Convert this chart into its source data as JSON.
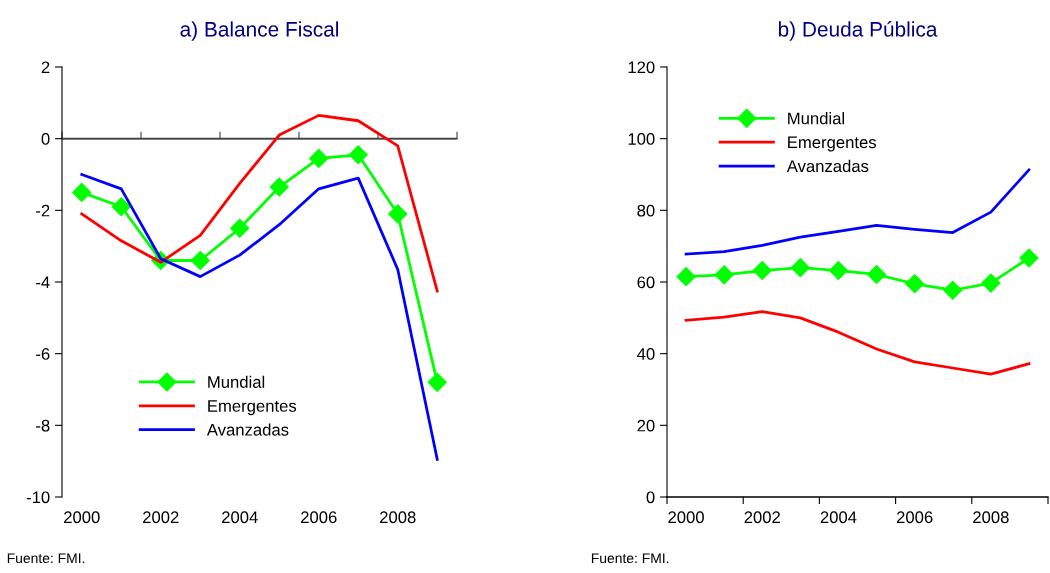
{
  "chart_data": [
    {
      "type": "line",
      "title": "a) Balance Fiscal",
      "categories": [
        "2000",
        null,
        "2002",
        null,
        "2004",
        null,
        "2006",
        null,
        "2008",
        null
      ],
      "series": [
        {
          "name": "Mundial",
          "color": "#00ff00",
          "marker": "diamond",
          "values": [
            -1.5,
            -1.9,
            -3.4,
            -3.4,
            -2.5,
            -1.35,
            -0.55,
            -0.45,
            -2.1,
            -6.8
          ]
        },
        {
          "name": "Emergentes",
          "color": "#ff0000",
          "values": [
            -2.1,
            -2.85,
            -3.45,
            -2.7,
            -1.25,
            0.1,
            0.65,
            0.5,
            -0.2,
            -4.25
          ]
        },
        {
          "name": "Avanzadas",
          "color": "#0000ff",
          "values": [
            -1.0,
            -1.4,
            -3.35,
            -3.85,
            -3.25,
            -2.4,
            -1.4,
            -1.1,
            -3.65,
            -8.95
          ]
        }
      ],
      "ylim": [
        -10,
        2
      ],
      "yticks": [
        -10,
        -8,
        -6,
        -4,
        -2,
        0,
        2
      ],
      "ref_lines": [
        {
          "axis": "y",
          "value": 0,
          "color": "#404040"
        }
      ],
      "legend": "bottom left",
      "annotations": [
        "Fuente: FMI."
      ]
    },
    {
      "type": "line",
      "title": "b) Deuda Pública",
      "categories": [
        "2000",
        null,
        "2002",
        null,
        "2004",
        null,
        "2006",
        null,
        "2008",
        null
      ],
      "series": [
        {
          "name": "Mundial",
          "color": "#00ff00",
          "marker": "diamond",
          "values": [
            61.5,
            62,
            63.2,
            64,
            63.2,
            62.1,
            59.5,
            57.7,
            59.7,
            66.7
          ]
        },
        {
          "name": "Emergentes",
          "color": "#ff0000",
          "values": [
            49.3,
            50.2,
            51.7,
            50,
            46,
            41.3,
            37.7,
            36,
            34.3,
            37.2
          ]
        },
        {
          "name": "Avanzadas",
          "color": "#0000ff",
          "values": [
            67.8,
            68.5,
            70.2,
            72.5,
            74.1,
            75.8,
            74.7,
            73.8,
            79.5,
            91.3
          ]
        }
      ],
      "ylim": [
        0,
        120
      ],
      "yticks": [
        0,
        20,
        40,
        60,
        80,
        100,
        120
      ],
      "grid": false,
      "legend": "top left",
      "annotations": [
        "Fuente: FMI."
      ]
    }
  ]
}
